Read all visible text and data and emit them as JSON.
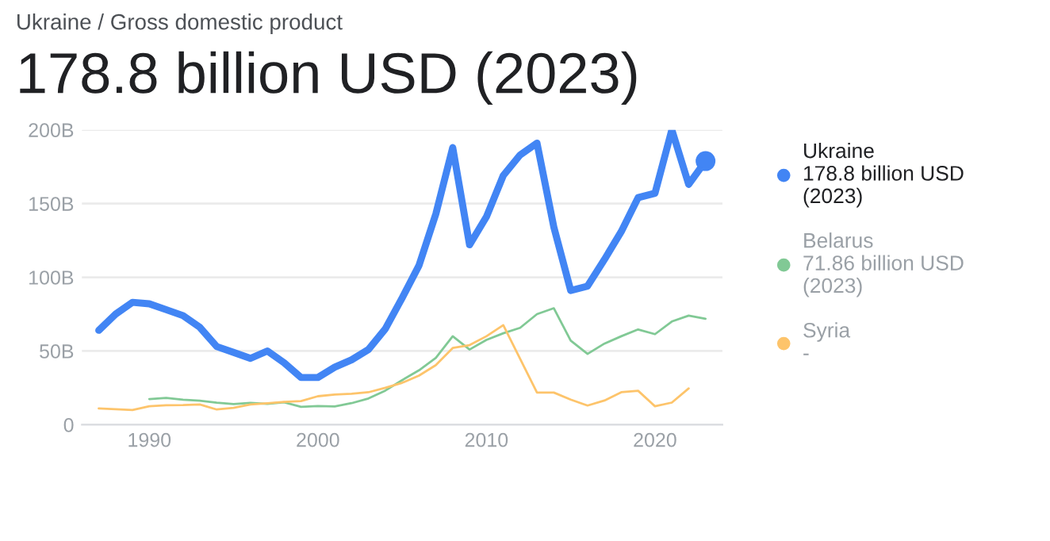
{
  "chart_data": {
    "type": "line",
    "subtitle": "Ukraine / Gross domestic product",
    "title": "178.8 billion USD (2023)",
    "series": [
      {
        "name": "Ukraine",
        "color": "#4285f4",
        "x": [
          1987,
          1988,
          1989,
          1990,
          1991,
          1992,
          1993,
          1994,
          1995,
          1996,
          1997,
          1998,
          1999,
          2000,
          2001,
          2002,
          2003,
          2004,
          2005,
          2006,
          2007,
          2008,
          2009,
          2010,
          2011,
          2012,
          2013,
          2014,
          2015,
          2016,
          2017,
          2018,
          2019,
          2020,
          2021,
          2022,
          2023
        ],
        "values": [
          64,
          75,
          83,
          82,
          78,
          74,
          66,
          53,
          49,
          45,
          50,
          42,
          32,
          32,
          39,
          44,
          51,
          65,
          86,
          108,
          143,
          188,
          122,
          141,
          169,
          183,
          191,
          134,
          91,
          94,
          112,
          131,
          154,
          157,
          200,
          163,
          178.8
        ]
      },
      {
        "name": "Belarus",
        "color": "#81c995",
        "x": [
          1990,
          1991,
          1992,
          1993,
          1994,
          1995,
          1996,
          1997,
          1998,
          1999,
          2000,
          2001,
          2002,
          2003,
          2004,
          2005,
          2006,
          2007,
          2008,
          2009,
          2010,
          2011,
          2012,
          2013,
          2014,
          2015,
          2016,
          2017,
          2018,
          2019,
          2020,
          2021,
          2022,
          2023
        ],
        "values": [
          17.4,
          18.1,
          17,
          16.3,
          14.9,
          14,
          14.8,
          14.1,
          15.2,
          12.1,
          12.7,
          12.4,
          14.6,
          17.8,
          23.1,
          30.2,
          36.9,
          45.3,
          60,
          51,
          57.5,
          62,
          65.7,
          75,
          79,
          57,
          48,
          55,
          60,
          64.6,
          61.4,
          70,
          74,
          71.86
        ]
      },
      {
        "name": "Syria",
        "color": "#fdc46b",
        "x": [
          1987,
          1988,
          1989,
          1990,
          1991,
          1992,
          1993,
          1994,
          1995,
          1996,
          1997,
          1998,
          1999,
          2000,
          2001,
          2002,
          2003,
          2004,
          2005,
          2006,
          2007,
          2008,
          2009,
          2010,
          2011,
          2013,
          2014,
          2015,
          2016,
          2017,
          2018,
          2019,
          2020,
          2021,
          2022
        ],
        "values": [
          11,
          10.5,
          10,
          12.5,
          13.2,
          13.3,
          13.7,
          10.3,
          11.4,
          13.7,
          14.5,
          15.5,
          16,
          19.3,
          20.5,
          21,
          22,
          25,
          28.4,
          33.3,
          40.4,
          52,
          54,
          60,
          67.5,
          21.8,
          21.8,
          17,
          13,
          16.4,
          22,
          23,
          12.5,
          15,
          24.6
        ]
      }
    ],
    "annotations": [
      "178.8 billion USD\n(2023)",
      "71.86 billion USD\n(2023)",
      "-"
    ],
    "xlim": [
      1986,
      2024
    ],
    "xticks": [
      1990,
      2000,
      2010,
      2020
    ],
    "ylim": [
      0,
      200
    ],
    "yticks": [
      0,
      {
        "value": 50,
        "label": "50B"
      },
      {
        "value": 100,
        "label": "100B"
      },
      {
        "value": 150,
        "label": "150B"
      },
      {
        "value": 200,
        "label": "200B"
      }
    ],
    "grid": "y",
    "legend": "right",
    "line_style": "solid"
  }
}
